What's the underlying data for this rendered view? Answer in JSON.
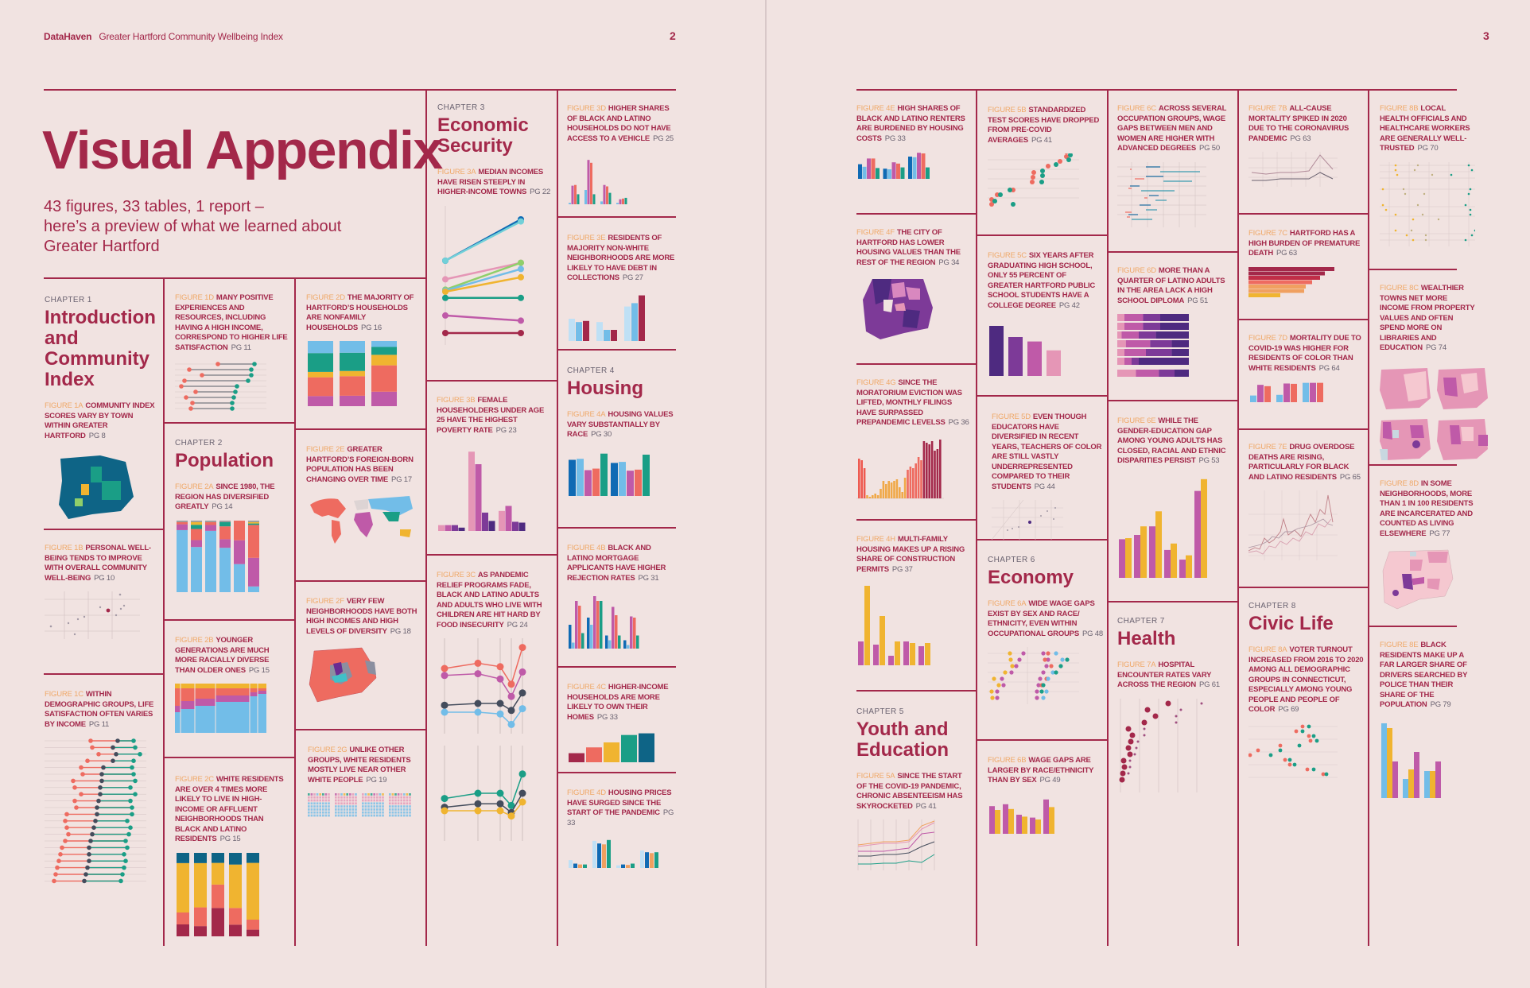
{
  "header": {
    "brand": "DataHaven",
    "report_title": "Greater Hartford Community Wellbeing Index",
    "left_page_number": "2",
    "right_page_number": "3"
  },
  "title": "Visual Appendix",
  "intro": {
    "line1": "43 figures, 33 tables, 1 report –",
    "line2": "here’s a preview of what we learned about",
    "line3": "Greater Hartford"
  },
  "colors": {
    "background": "#f1e3e1",
    "accent": "#a3284a",
    "figure_label": "#f0a868",
    "page_ref": "#6a6270",
    "teal": "#1a9e86",
    "salmon": "#ee6b60",
    "magenta": "#bf5aa8",
    "sky": "#72bde8",
    "gold": "#f0b430",
    "navy": "#0f6ab4",
    "purple": "#4e2a80"
  },
  "chapters": [
    {
      "label": "CHAPTER 1",
      "title": "Introduction and Community Index"
    },
    {
      "label": "CHAPTER 2",
      "title": "Population"
    },
    {
      "label": "CHAPTER 3",
      "title": "Economic Security"
    },
    {
      "label": "CHAPTER 4",
      "title": "Housing"
    },
    {
      "label": "CHAPTER 5",
      "title": "Youth and Education"
    },
    {
      "label": "CHAPTER 6",
      "title": "Economy"
    },
    {
      "label": "CHAPTER 7",
      "title": "Health"
    },
    {
      "label": "CHAPTER 8",
      "title": "Civic Life"
    }
  ],
  "figures": {
    "1A": {
      "label": "FIGURE 1A",
      "text": "COMMUNITY INDEX SCORES VARY BY TOWN WITHIN GREATER HARTFORD",
      "page": "PG 8",
      "chart": "map"
    },
    "1B": {
      "label": "FIGURE 1B",
      "text": "PERSONAL WELL-BEING TENDS TO IMPROVE WITH OVERALL COMMUNITY WELL-BEING",
      "page": "PG 10",
      "chart": "scatter"
    },
    "1C": {
      "label": "FIGURE 1C",
      "text": "WITHIN DEMOGRAPHIC GROUPS, LIFE SATISFACTION OFTEN VARIES BY INCOME",
      "page": "PG 11",
      "chart": "dumbbell"
    },
    "1D": {
      "label": "FIGURE 1D",
      "text": "MANY POSITIVE EXPERIENCES AND RESOURCES, INCLUDING HAVING A HIGH INCOME, CORRESPOND TO HIGHER LIFE SATISFACTION",
      "page": "PG 11",
      "chart": "dumbbell"
    },
    "2A": {
      "label": "FIGURE 2A",
      "text": "SINCE 1980, THE REGION HAS DIVERSIFIED GREATLY",
      "page": "PG 14",
      "chart": "stacked-bar"
    },
    "2B": {
      "label": "FIGURE 2B",
      "text": "YOUNGER GENERATIONS ARE MUCH MORE RACIALLY DIVERSE THAN OLDER ONES",
      "page": "PG 15",
      "chart": "mosaic"
    },
    "2C": {
      "label": "FIGURE 2C",
      "text": "WHITE RESIDENTS ARE OVER 4 TIMES MORE LIKELY TO LIVE IN HIGH-INCOME OR AFFLUENT NEIGHBORHOODS THAN BLACK AND LATINO RESIDENTS",
      "page": "PG 15",
      "chart": "stacked-bar"
    },
    "2D": {
      "label": "FIGURE 2D",
      "text": "THE MAJORITY OF HARTFORD’S HOUSEHOLDS ARE NONFAMILY HOUSEHOLDS",
      "page": "PG 16",
      "chart": "stacked-bar"
    },
    "2E": {
      "label": "FIGURE 2E",
      "text": "GREATER HARTFORD’S FOREIGN-BORN POPULATION HAS BEEN CHANGING OVER TIME",
      "page": "PG 17",
      "chart": "world-map"
    },
    "2F": {
      "label": "FIGURE 2F",
      "text": "VERY FEW NEIGHBORHOODS HAVE BOTH HIGH INCOMES AND HIGH LEVELS OF DIVERSITY",
      "page": "PG 18",
      "chart": "map"
    },
    "2G": {
      "label": "FIGURE 2G",
      "text": "UNLIKE OTHER GROUPS, WHITE RESIDENTS MOSTLY LIVE NEAR OTHER WHITE PEOPLE",
      "page": "PG 19",
      "chart": "waffle"
    },
    "3A": {
      "label": "FIGURE 3A",
      "text": "MEDIAN INCOMES HAVE RISEN STEEPLY IN HIGHER-INCOME TOWNS",
      "page": "PG 22",
      "chart": "slope"
    },
    "3B": {
      "label": "FIGURE 3B",
      "text": "FEMALE HOUSEHOLDERS UNDER AGE 25 HAVE THE HIGHEST POVERTY RATE",
      "page": "PG 23",
      "chart": "bar"
    },
    "3C": {
      "label": "FIGURE 3C",
      "text": "AS PANDEMIC RELIEF PROGRAMS FADE, BLACK AND LATINO ADULTS AND ADULTS WHO LIVE WITH CHILDREN ARE HIT HARD BY FOOD INSECURITY",
      "page": "PG 24",
      "chart": "line"
    },
    "3D": {
      "label": "FIGURE 3D",
      "text": "HIGHER SHARES OF BLACK AND LATINO HOUSEHOLDS DO NOT HAVE ACCESS TO A VEHICLE",
      "page": "PG 25",
      "chart": "bar"
    },
    "3E": {
      "label": "FIGURE 3E",
      "text": "RESIDENTS OF MAJORITY NON-WHITE NEIGHBORHOODS ARE MORE LIKELY TO HAVE DEBT IN COLLECTIONS",
      "page": "PG 27",
      "chart": "bar"
    },
    "4A": {
      "label": "FIGURE 4A",
      "text": "HOUSING VALUES VARY SUBSTANTIALLY BY RACE",
      "page": "PG 30",
      "chart": "bar"
    },
    "4B": {
      "label": "FIGURE 4B",
      "text": "BLACK AND LATINO MORTGAGE APPLICANTS HAVE HIGHER REJECTION RATES",
      "page": "PG 31",
      "chart": "bar"
    },
    "4C": {
      "label": "FIGURE 4C",
      "text": "HIGHER-INCOME HOUSEHOLDS ARE MORE LIKELY TO OWN THEIR HOMES",
      "page": "PG 33",
      "chart": "bar"
    },
    "4D": {
      "label": "FIGURE 4D",
      "text": "HOUSING PRICES HAVE SURGED SINCE THE START OF THE PANDEMIC",
      "page": "PG 33",
      "chart": "bar"
    },
    "4E": {
      "label": "FIGURE 4E",
      "text": "HIGH SHARES OF BLACK AND LATINO RENTERS ARE BURDENED BY HOUSING COSTS",
      "page": "PG 33",
      "chart": "bar"
    },
    "4F": {
      "label": "FIGURE 4F",
      "text": "THE CITY OF HARTFORD HAS LOWER HOUSING VALUES THAN THE REST OF THE REGION",
      "page": "PG 34",
      "chart": "map"
    },
    "4G": {
      "label": "FIGURE 4G",
      "text": "SINCE THE MORATORIUM EVICTION WAS LIFTED, MONTHLY FILINGS HAVE SURPASSED PREPANDEMIC LEVELSS",
      "page": "PG 36",
      "chart": "bar"
    },
    "4H": {
      "label": "FIGURE 4H",
      "text": "MULTI-FAMILY HOUSING MAKES UP A RISING SHARE OF CONSTRUCTION PERMITS",
      "page": "PG 37",
      "chart": "bar"
    },
    "5A": {
      "label": "FIGURE 5A",
      "text": "SINCE THE START OF THE COVID-19 PANDEMIC, CHRONIC ABSENTEEISM HAS SKYROCKETED",
      "page": "PG 41",
      "chart": "line"
    },
    "5B": {
      "label": "FIGURE 5B",
      "text": "STANDARDIZED TEST SCORES HAVE DROPPED FROM PRE-COVID AVERAGES",
      "page": "PG 41",
      "chart": "dot"
    },
    "5C": {
      "label": "FIGURE 5C",
      "text": "SIX YEARS AFTER GRADUATING HIGH SCHOOL, ONLY 55 PERCENT OF GREATER HARTFORD PUBLIC SCHOOL STUDENTS HAVE A COLLEGE DEGREE",
      "page": "PG 42",
      "chart": "bar"
    },
    "5D": {
      "label": "FIGURE 5D",
      "text": "EVEN THOUGH EDUCATORS HAVE DIVERSIFIED IN RECENT YEARS, TEACHERS OF COLOR ARE STILL VASTLY UNDERREPRESENTED COMPARED TO THEIR STUDENTS",
      "page": "PG 44",
      "chart": "scatter"
    },
    "6A": {
      "label": "FIGURE 6A",
      "text": "WIDE WAGE GAPS EXIST BY SEX AND RACE/ ETHNICITY, EVEN WITHIN OCCUPATIONAL GROUPS",
      "page": "PG 48",
      "chart": "dot"
    },
    "6B": {
      "label": "FIGURE 6B",
      "text": "WAGE GAPS ARE LARGER BY RACE/ETHNICITY THAN BY SEX",
      "page": "PG 49",
      "chart": "bar"
    },
    "6C": {
      "label": "FIGURE 6C",
      "text": "ACROSS SEVERAL OCCUPATION GROUPS, WAGE GAPS BETWEEN MEN AND WOMEN ARE HIGHER WITH ADVANCED DEGREES",
      "page": "PG 50",
      "chart": "range"
    },
    "6D": {
      "label": "FIGURE 6D",
      "text": "MORE THAN A QUARTER OF LATINO ADULTS IN THE AREA LACK A HIGH SCHOOL DIPLOMA",
      "page": "PG 51",
      "chart": "stacked-hbar"
    },
    "6E": {
      "label": "FIGURE 6E",
      "text": "WHILE THE GENDER-EDUCATION GAP AMONG YOUNG ADULTS HAS CLOSED, RACIAL AND ETHNIC DISPARITIES PERSIST",
      "page": "PG 53",
      "chart": "bar"
    },
    "7A": {
      "label": "FIGURE 7A",
      "text": "HOSPITAL ENCOUNTER RATES VARY ACROSS THE REGION",
      "page": "PG 61",
      "chart": "dot"
    },
    "7B": {
      "label": "FIGURE 7B",
      "text": "ALL-CAUSE MORTALITY SPIKED IN 2020 DUE TO THE CORONAVIRUS PANDEMIC",
      "page": "PG 63",
      "chart": "line"
    },
    "7C": {
      "label": "FIGURE 7C",
      "text": "HARTFORD HAS A HIGH BURDEN OF PREMATURE DEATH",
      "page": "PG 63",
      "chart": "hbar"
    },
    "7D": {
      "label": "FIGURE 7D",
      "text": "MORTALITY DUE TO COVID-19 WAS HIGHER FOR RESIDENTS OF COLOR THAN WHITE RESIDENTS",
      "page": "PG 64",
      "chart": "bar"
    },
    "7E": {
      "label": "FIGURE 7E",
      "text": "DRUG OVERDOSE DEATHS ARE RISING, PARTICULARLY FOR BLACK AND LATINO RESIDENTS",
      "page": "PG 65",
      "chart": "line"
    },
    "8A": {
      "label": "FIGURE 8A",
      "text": "VOTER TURNOUT INCREASED FROM 2016 TO 2020 AMONG ALL DEMOGRAPHIC GROUPS IN CONNECTICUT, ESPECIALLY AMONG YOUNG PEOPLE AND PEOPLE OF COLOR",
      "page": "PG 69",
      "chart": "dot"
    },
    "8B": {
      "label": "FIGURE 8B",
      "text": "LOCAL HEALTH OFFICIALS AND HEALTHCARE WORKERS ARE GENERALLY WELL-TRUSTED",
      "page": "PG 70",
      "chart": "dot"
    },
    "8C": {
      "label": "FIGURE 8C",
      "text": "WEALTHIER TOWNS NET MORE INCOME FROM PROPERTY VALUES AND OFTEN SPEND MORE ON LIBRARIES AND EDUCATION",
      "page": "PG 74",
      "chart": "map"
    },
    "8D": {
      "label": "FIGURE 8D",
      "text": "IN SOME NEIGHBORHOODS, MORE THAN 1 IN 100 RESIDENTS ARE INCARCERATED AND COUNTED AS LIVING ELSEWHERE",
      "page": "PG 77",
      "chart": "map"
    },
    "8E": {
      "label": "FIGURE 8E",
      "text": "BLACK RESIDENTS MAKE UP A FAR LARGER SHARE OF DRIVERS SEARCHED BY POLICE THAN THEIR SHARE OF THE POPULATION",
      "page": "PG 79",
      "chart": "bar"
    }
  },
  "minis": {
    "3D": {
      "colors": [
        "#72bde8",
        "#bf5aa8",
        "#ee6b60",
        "#1a9e86"
      ],
      "groups": [
        [
          2,
          26,
          27,
          14
        ],
        [
          20,
          62,
          58,
          14
        ],
        [
          4,
          27,
          25,
          16
        ],
        [
          2,
          7,
          8,
          9
        ]
      ]
    },
    "3E": {
      "colors": [
        "#bfe0f5",
        "#72bde8",
        "#a3284a"
      ],
      "groups": [
        [
          40,
          34,
          36
        ],
        [
          34,
          20,
          20
        ],
        [
          62,
          68,
          82
        ]
      ]
    },
    "3B": {
      "colors": [
        "#e596b6",
        "#bf5aa8",
        "#7d3a98",
        "#4e2a80"
      ],
      "groups": [
        [
          7,
          7,
          7,
          4
        ],
        [
          95,
          80,
          22,
          12
        ],
        [
          24,
          30,
          11,
          10
        ]
      ]
    },
    "4A": {
      "colors": [
        "#0f6ab4",
        "#72bde8",
        "#bf5aa8",
        "#ee6b60",
        "#1a9e86"
      ],
      "groups": [
        [
          70,
          72,
          50,
          53,
          82
        ],
        [
          64,
          66,
          49,
          51,
          80
        ]
      ]
    },
    "4B": {
      "colors": [
        "#0f6ab4",
        "#72bde8",
        "#bf5aa8",
        "#ee6b60",
        "#1a9e86"
      ],
      "groups": [
        [
          40,
          10,
          80,
          72,
          26
        ],
        [
          52,
          40,
          88,
          80,
          80
        ],
        [
          22,
          14,
          70,
          56,
          22
        ],
        [
          14,
          6,
          54,
          52,
          22
        ]
      ]
    },
    "4C": {
      "colors": [
        "#a3284a",
        "#ee6b60",
        "#f0b430",
        "#1a9e86",
        "#0e6486"
      ],
      "groups": [
        [
          22,
          36,
          48,
          66,
          70
        ]
      ]
    },
    "4D": {
      "colors": [
        "#bfe0f5",
        "#0f6ab4",
        "#f0a060",
        "#1a9e86"
      ],
      "groups": [
        [
          18,
          10,
          8,
          8
        ],
        [
          62,
          56,
          54,
          64
        ],
        [
          6,
          8,
          7,
          10
        ],
        [
          40,
          36,
          34,
          36
        ]
      ]
    },
    "4E": {
      "colors": [
        "#0f6ab4",
        "#72bde8",
        "#bf5aa8",
        "#ee6b60",
        "#1a9e86"
      ],
      "groups": [
        [
          46,
          38,
          64,
          64,
          34
        ],
        [
          32,
          30,
          52,
          48,
          36
        ],
        [
          70,
          68,
          82,
          80,
          36
        ]
      ]
    },
    "4H": {
      "colors": [
        "#bf5aa8",
        "#f0b430"
      ],
      "groups": [
        [
          30,
          100
        ],
        [
          26,
          62
        ],
        [
          12,
          30
        ],
        [
          30,
          28
        ],
        [
          24,
          28
        ]
      ]
    },
    "5C": {
      "colors": [
        "#4e2a80",
        "#7d3a98",
        "#bf5aa8",
        "#e596b6"
      ],
      "groups": [
        [
          90,
          70,
          62,
          46
        ]
      ]
    },
    "6B": {
      "colors": [
        "#bf5aa8",
        "#f0b430"
      ],
      "groups": [
        [
          58,
          50
        ],
        [
          62,
          52
        ],
        [
          40,
          36
        ],
        [
          34,
          30
        ],
        [
          72,
          56
        ]
      ]
    },
    "6E": {
      "colors": [
        "#bf5aa8",
        "#f0b430"
      ],
      "groups": [
        [
          36,
          37
        ],
        [
          40,
          48
        ],
        [
          48,
          62
        ],
        [
          26,
          32
        ],
        [
          17,
          21
        ],
        [
          81,
          92
        ]
      ]
    },
    "7D": {
      "colors": [
        "#72bde8",
        "#bf5aa8",
        "#ee6b60"
      ],
      "groups": [
        [
          20,
          52,
          48
        ],
        [
          22,
          56,
          55
        ],
        [
          58,
          58,
          58
        ]
      ]
    },
    "8E": {
      "colors": [
        "#72bde8",
        "#f0b430",
        "#bf5aa8"
      ],
      "groups": [
        [
          94,
          88,
          46
        ],
        [
          24,
          36,
          58
        ],
        [
          34,
          34,
          46
        ]
      ]
    },
    "2D": {
      "colors": [
        "#bf5aa8",
        "#ee6b60",
        "#f0b430",
        "#1a9e86",
        "#72bde8"
      ],
      "stacks": [
        [
          15,
          28,
          8,
          28,
          18
        ],
        [
          16,
          30,
          8,
          28,
          18
        ],
        [
          22,
          40,
          16,
          12,
          9
        ]
      ]
    },
    "2A": {
      "colors": [
        "#72bde8",
        "#bf5aa8",
        "#ee6b60",
        "#1a9e86",
        "#f0b430",
        "#999"
      ],
      "stacks": [
        [
          85,
          8,
          3,
          0,
          0,
          2
        ],
        [
          65,
          10,
          16,
          6,
          4,
          2
        ],
        [
          84,
          8,
          4,
          0,
          0,
          2
        ],
        [
          62,
          12,
          18,
          6,
          0,
          2
        ],
        [
          40,
          34,
          28,
          0,
          0,
          0
        ],
        [
          8,
          40,
          46,
          2,
          2,
          2
        ]
      ]
    },
    "2C": {
      "colors": [
        "#a3284a",
        "#ee6b60",
        "#f0b430",
        "#0e6486"
      ],
      "stacks": [
        [
          14,
          14,
          58,
          12
        ],
        [
          12,
          22,
          52,
          12
        ],
        [
          34,
          28,
          26,
          12
        ],
        [
          14,
          20,
          52,
          14
        ],
        [
          8,
          12,
          68,
          12
        ]
      ]
    },
    "3A": {
      "colors": [
        "#0f6ab4",
        "#72d0d8",
        "#e596b6",
        "#8fcf6a",
        "#72bde8",
        "#f0b430",
        "#1a9e86",
        "#bf5aa8",
        "#a3284a"
      ],
      "start": [
        70,
        70,
        52,
        42,
        41,
        40,
        34,
        17,
        0
      ],
      "end": [
        110,
        108,
        68,
        68,
        62,
        54,
        34,
        12,
        0
      ]
    },
    "3C_top": {
      "colors": [
        "#ee6b60",
        "#bf5aa8",
        "#444c5c",
        "#72bde8"
      ],
      "series": [
        [
          70,
          76,
          72,
          52,
          94
        ],
        [
          62,
          64,
          58,
          38,
          66
        ],
        [
          28,
          30,
          30,
          22,
          42
        ],
        [
          20,
          20,
          18,
          6,
          24
        ]
      ]
    },
    "3C_bot": {
      "colors": [
        "#1a9e86",
        "#444c5c",
        "#f0b430"
      ],
      "series": [
        [
          44,
          50,
          50,
          36,
          72
        ],
        [
          34,
          38,
          38,
          28,
          50
        ],
        [
          30,
          30,
          30,
          24,
          40
        ]
      ]
    }
  }
}
